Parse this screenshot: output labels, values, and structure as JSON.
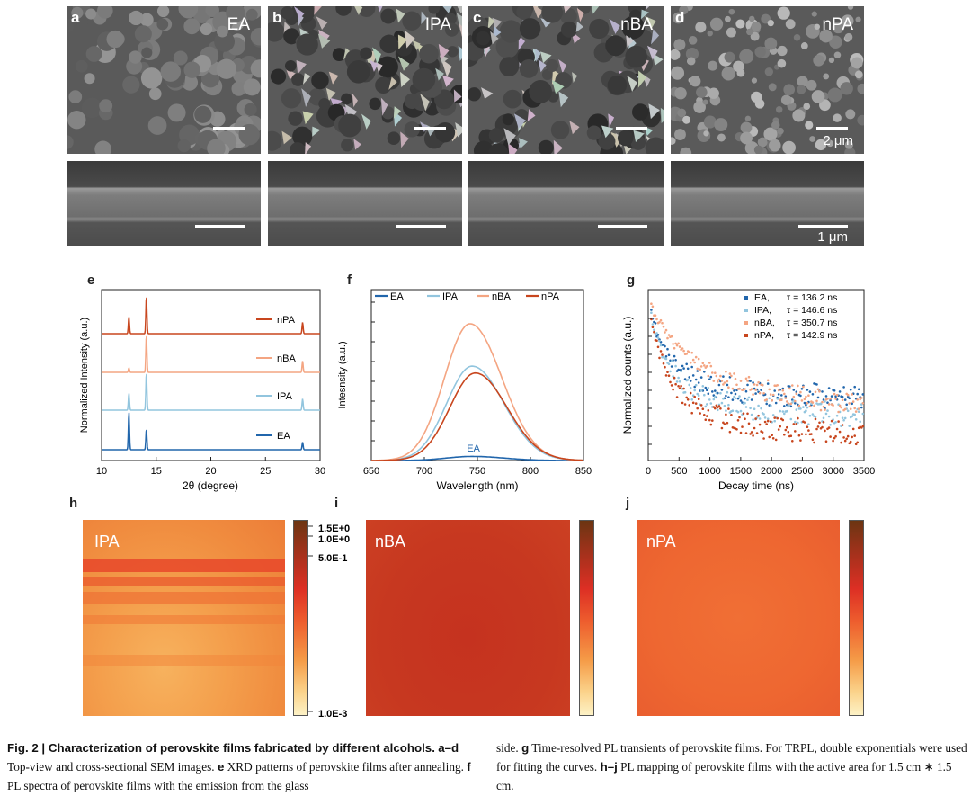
{
  "sem": {
    "panels": [
      {
        "letter": "a",
        "alcohol": "EA"
      },
      {
        "letter": "b",
        "alcohol": "IPA"
      },
      {
        "letter": "c",
        "alcohol": "nBA"
      },
      {
        "letter": "d",
        "alcohol": "nPA"
      }
    ],
    "top_scale": "2 μm",
    "cross_scale": "1 μm"
  },
  "panel_letters": {
    "e": "e",
    "f": "f",
    "g": "g",
    "h": "h",
    "i": "i",
    "j": "j"
  },
  "chart_data": [
    {
      "type": "line",
      "panel": "e",
      "xlabel": "2θ (degree)",
      "ylabel": "Normalized Intensity (a.u.)",
      "xlim": [
        10,
        30
      ],
      "xticks": [
        "10",
        "15",
        "20",
        "25",
        "30"
      ],
      "series": [
        {
          "name": "nPA",
          "color": "#c8461e",
          "peaks": [
            [
              12.5,
              0.45
            ],
            [
              14.1,
              1.0
            ],
            [
              28.4,
              0.3
            ]
          ]
        },
        {
          "name": "nBA",
          "color": "#f4a582",
          "peaks": [
            [
              12.5,
              0.12
            ],
            [
              14.1,
              1.0
            ],
            [
              28.4,
              0.3
            ]
          ]
        },
        {
          "name": "IPA",
          "color": "#92c5de",
          "peaks": [
            [
              12.5,
              0.45
            ],
            [
              14.1,
              1.0
            ],
            [
              28.4,
              0.3
            ]
          ]
        },
        {
          "name": "EA",
          "color": "#2166ac",
          "peaks": [
            [
              12.5,
              1.0
            ],
            [
              14.1,
              0.55
            ],
            [
              28.4,
              0.2
            ]
          ]
        }
      ]
    },
    {
      "type": "line",
      "panel": "f",
      "xlabel": "Wavelength (nm)",
      "ylabel": "Intesnsity (a.u.)",
      "xlim": [
        650,
        850
      ],
      "xticks": [
        "650",
        "700",
        "750",
        "800",
        "850"
      ],
      "annotation": "EA",
      "series": [
        {
          "name": "EA",
          "color": "#2166ac",
          "peak_nm": 745,
          "height": 0.03
        },
        {
          "name": "IPA",
          "color": "#92c5de",
          "peak_nm": 745,
          "height": 0.69
        },
        {
          "name": "nBA",
          "color": "#f4a582",
          "peak_nm": 743,
          "height": 1.0
        },
        {
          "name": "nPA",
          "color": "#c8461e",
          "peak_nm": 748,
          "height": 0.64
        }
      ]
    },
    {
      "type": "scatter",
      "panel": "g",
      "xlabel": "Decay time (ns)",
      "ylabel": "Normalized counts (a.u.)",
      "xlim": [
        0,
        3500
      ],
      "xticks": [
        "0",
        "500",
        "1000",
        "1500",
        "2000",
        "2500",
        "3000",
        "3500"
      ],
      "yscale": "log",
      "series": [
        {
          "name": "EA,",
          "tau_label": "τ = 136.2 ns",
          "tau": 136.2,
          "color": "#2166ac"
        },
        {
          "name": "IPA,",
          "tau_label": "τ = 146.6 ns",
          "tau": 146.6,
          "color": "#92c5de"
        },
        {
          "name": "nBA,",
          "tau_label": "τ = 350.7 ns",
          "tau": 350.7,
          "color": "#f4a582"
        },
        {
          "name": "nPA,",
          "tau_label": "τ = 142.9 ns",
          "tau": 142.9,
          "color": "#c8461e"
        }
      ]
    }
  ],
  "maps": {
    "h": {
      "label": "IPA",
      "ticks": [
        "1.5E+0",
        "1.0E+0",
        "5.0E-1",
        "1.0E-3"
      ]
    },
    "i": {
      "label": "nBA"
    },
    "j": {
      "label": "nPA"
    }
  },
  "caption": {
    "fig_label": "Fig. 2",
    "separator": " | ",
    "title": "Characterization of perovskite films fabricated by different alcohols.",
    "ad": "a–d",
    "ad_text": " Top-view and cross-sectional SEM images. ",
    "e": "e",
    "e_text": " XRD patterns of perovskite films after annealing. ",
    "f": "f",
    "f_text": " PL spectra of perovskite films with the emission from the glass side. ",
    "g": "g",
    "g_text": " Time-resolved PL transients of perovskite films. For TRPL, double exponentials were used for fitting the curves. ",
    "hj": "h–j",
    "hj_text": " PL mapping of perovskite films with the active area for 1.5 cm ∗ 1.5 cm."
  },
  "colors": {
    "accent_dark": "#c8461e",
    "map_h": "#f39a48",
    "map_i": "#c8361f",
    "map_j": "#ee6a33"
  }
}
